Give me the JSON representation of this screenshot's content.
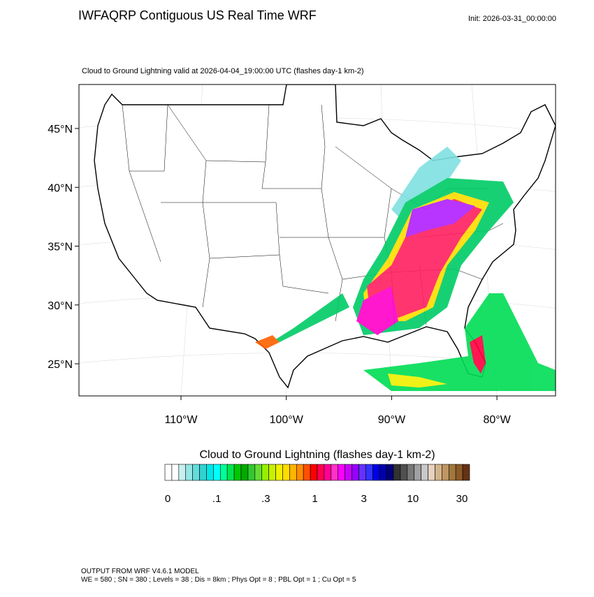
{
  "header": {
    "title": "IWFAQRP Contiguous US Real Time WRF",
    "init": "Init: 2026-03-31_00:00:00"
  },
  "map": {
    "subtitle": "Cloud to Ground Lightning valid at 2026-04-04_19:00:00 UTC   (flashes day-1 km-2)",
    "lat_labels": [
      "45°N",
      "40°N",
      "35°N",
      "30°N",
      "25°N"
    ],
    "lon_labels": [
      "110°W",
      "100°W",
      "90°W",
      "80°W"
    ]
  },
  "colorbar": {
    "title": "Cloud to Ground Lightning  (flashes day-1 km-2)",
    "labels": [
      "0",
      ".1",
      ".3",
      "1",
      "3",
      "10",
      "30"
    ],
    "colors": [
      "#ffffff",
      "#ffffff",
      "#c8f0f0",
      "#96e6e6",
      "#64dcdc",
      "#32d2d2",
      "#00e6e6",
      "#00ffff",
      "#00ff96",
      "#00e650",
      "#00c800",
      "#00aa00",
      "#32c832",
      "#64dc32",
      "#96f000",
      "#c8f000",
      "#f0f000",
      "#ffdc00",
      "#ffb400",
      "#ff8c00",
      "#ff5000",
      "#ff0000",
      "#ff0050",
      "#ff0096",
      "#ff32c8",
      "#ff00ff",
      "#c800ff",
      "#9600ff",
      "#6432ff",
      "#3232ff",
      "#0000e6",
      "#0000aa",
      "#000078",
      "#323232",
      "#505050",
      "#787878",
      "#a0a0a0",
      "#c8c8c8",
      "#e6d2be",
      "#d2b48c",
      "#be9664",
      "#a0783c",
      "#8c5a28",
      "#643214"
    ]
  },
  "footer": {
    "line1": "OUTPUT FROM WRF V4.6.1 MODEL",
    "line2": "WE = 580 ; SN = 380 ; Levels = 38 ; Dis = 8km ; Phys Opt = 8 ; PBL Opt = 1 ; Cu Opt = 5"
  }
}
